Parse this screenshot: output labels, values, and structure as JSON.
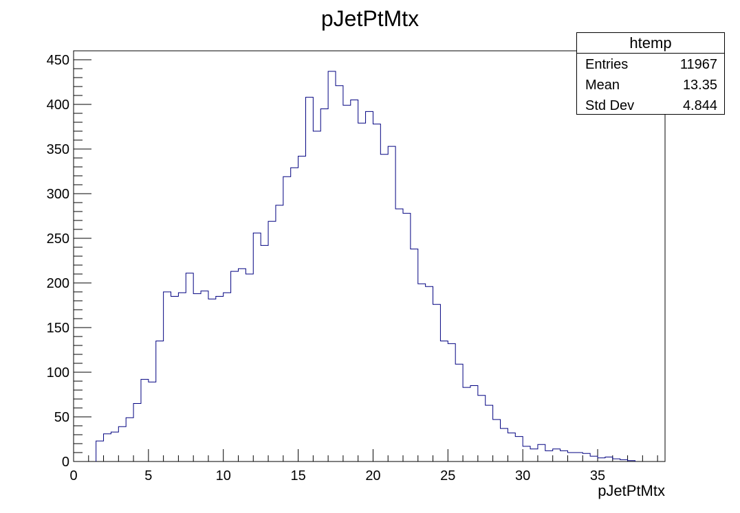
{
  "chart_data": {
    "type": "bar",
    "title": "pJetPtMtx",
    "xlabel": "pJetPtMtx",
    "ylabel": "",
    "xlim": [
      0,
      39.5
    ],
    "ylim": [
      0,
      460
    ],
    "bin_width": 0.5,
    "x_ticks": [
      0,
      5,
      10,
      15,
      20,
      25,
      30,
      35
    ],
    "y_ticks": [
      0,
      50,
      100,
      150,
      200,
      250,
      300,
      350,
      400,
      450
    ],
    "grid": false,
    "legend": "none",
    "line_color": "#000080",
    "x": [
      1.5,
      2,
      2.5,
      3,
      3.5,
      4,
      4.5,
      5,
      5.5,
      6,
      6.5,
      7,
      7.5,
      8,
      8.5,
      9,
      9.5,
      10,
      10.5,
      11,
      11.5,
      12,
      12.5,
      13,
      13.5,
      14,
      14.5,
      15,
      15.5,
      16,
      16.5,
      17,
      17.5,
      18,
      18.5,
      19,
      19.5,
      20,
      20.5,
      21,
      21.5,
      22,
      22.5,
      23,
      23.5,
      24,
      24.5,
      25,
      25.5,
      26,
      26.5,
      27,
      27.5,
      28,
      28.5,
      29,
      29.5,
      30,
      30.5,
      31,
      31.5,
      32,
      32.5,
      33,
      33.5,
      34,
      34.5,
      35,
      35.5,
      36,
      36.5,
      37
    ],
    "values": [
      23,
      31,
      33,
      39,
      49,
      65,
      92,
      89,
      135,
      190,
      185,
      189,
      211,
      188,
      191,
      182,
      185,
      189,
      213,
      216,
      210,
      256,
      242,
      269,
      287,
      319,
      329,
      342,
      408,
      370,
      395,
      437,
      421,
      399,
      405,
      379,
      392,
      378,
      344,
      353,
      283,
      278,
      238,
      199,
      196,
      176,
      135,
      132,
      109,
      83,
      85,
      74,
      63,
      47,
      37,
      32,
      28,
      17,
      14,
      19,
      12,
      14,
      12,
      10,
      10,
      9,
      6,
      4,
      5,
      3,
      2,
      1
    ]
  },
  "stats": {
    "title": "htemp",
    "rows": [
      {
        "label": "Entries",
        "value": "11967"
      },
      {
        "label": "Mean",
        "value": "13.35"
      },
      {
        "label": "Std Dev",
        "value": "4.844"
      }
    ]
  }
}
